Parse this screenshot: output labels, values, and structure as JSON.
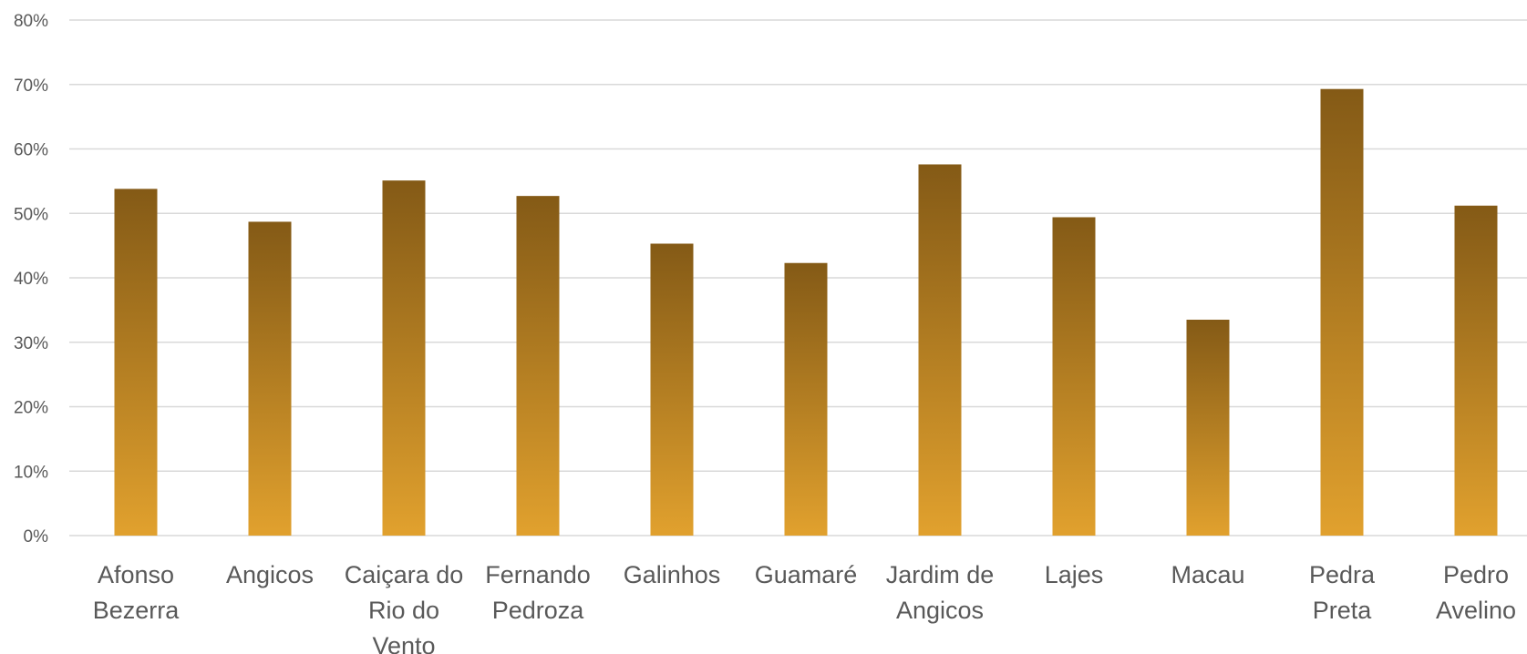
{
  "chart_data": {
    "type": "bar",
    "categories": [
      [
        "Afonso",
        "Bezerra"
      ],
      [
        "Angicos"
      ],
      [
        "Caiçara do",
        "Rio do",
        "Vento"
      ],
      [
        "Fernando",
        "Pedroza"
      ],
      [
        "Galinhos"
      ],
      [
        "Guamaré"
      ],
      [
        "Jardim de",
        "Angicos"
      ],
      [
        "Lajes"
      ],
      [
        "Macau"
      ],
      [
        "Pedra",
        "Preta"
      ],
      [
        "Pedro",
        "Avelino"
      ]
    ],
    "values": [
      53.8,
      48.7,
      55.1,
      52.7,
      45.3,
      42.3,
      57.6,
      49.4,
      33.5,
      69.3,
      51.2
    ],
    "title": "",
    "xlabel": "",
    "ylabel": "",
    "ylim": [
      0,
      80
    ],
    "yticks": [
      0,
      10,
      20,
      30,
      40,
      50,
      60,
      70,
      80
    ],
    "ytick_labels": [
      "0%",
      "10%",
      "20%",
      "30%",
      "40%",
      "50%",
      "60%",
      "70%",
      "80%"
    ],
    "grid": true,
    "legend": "none",
    "colors": {
      "bar_top": "#845A16",
      "bar_bottom": "#E1A12E",
      "grid": "#D9D9D9",
      "text": "#595959"
    }
  }
}
